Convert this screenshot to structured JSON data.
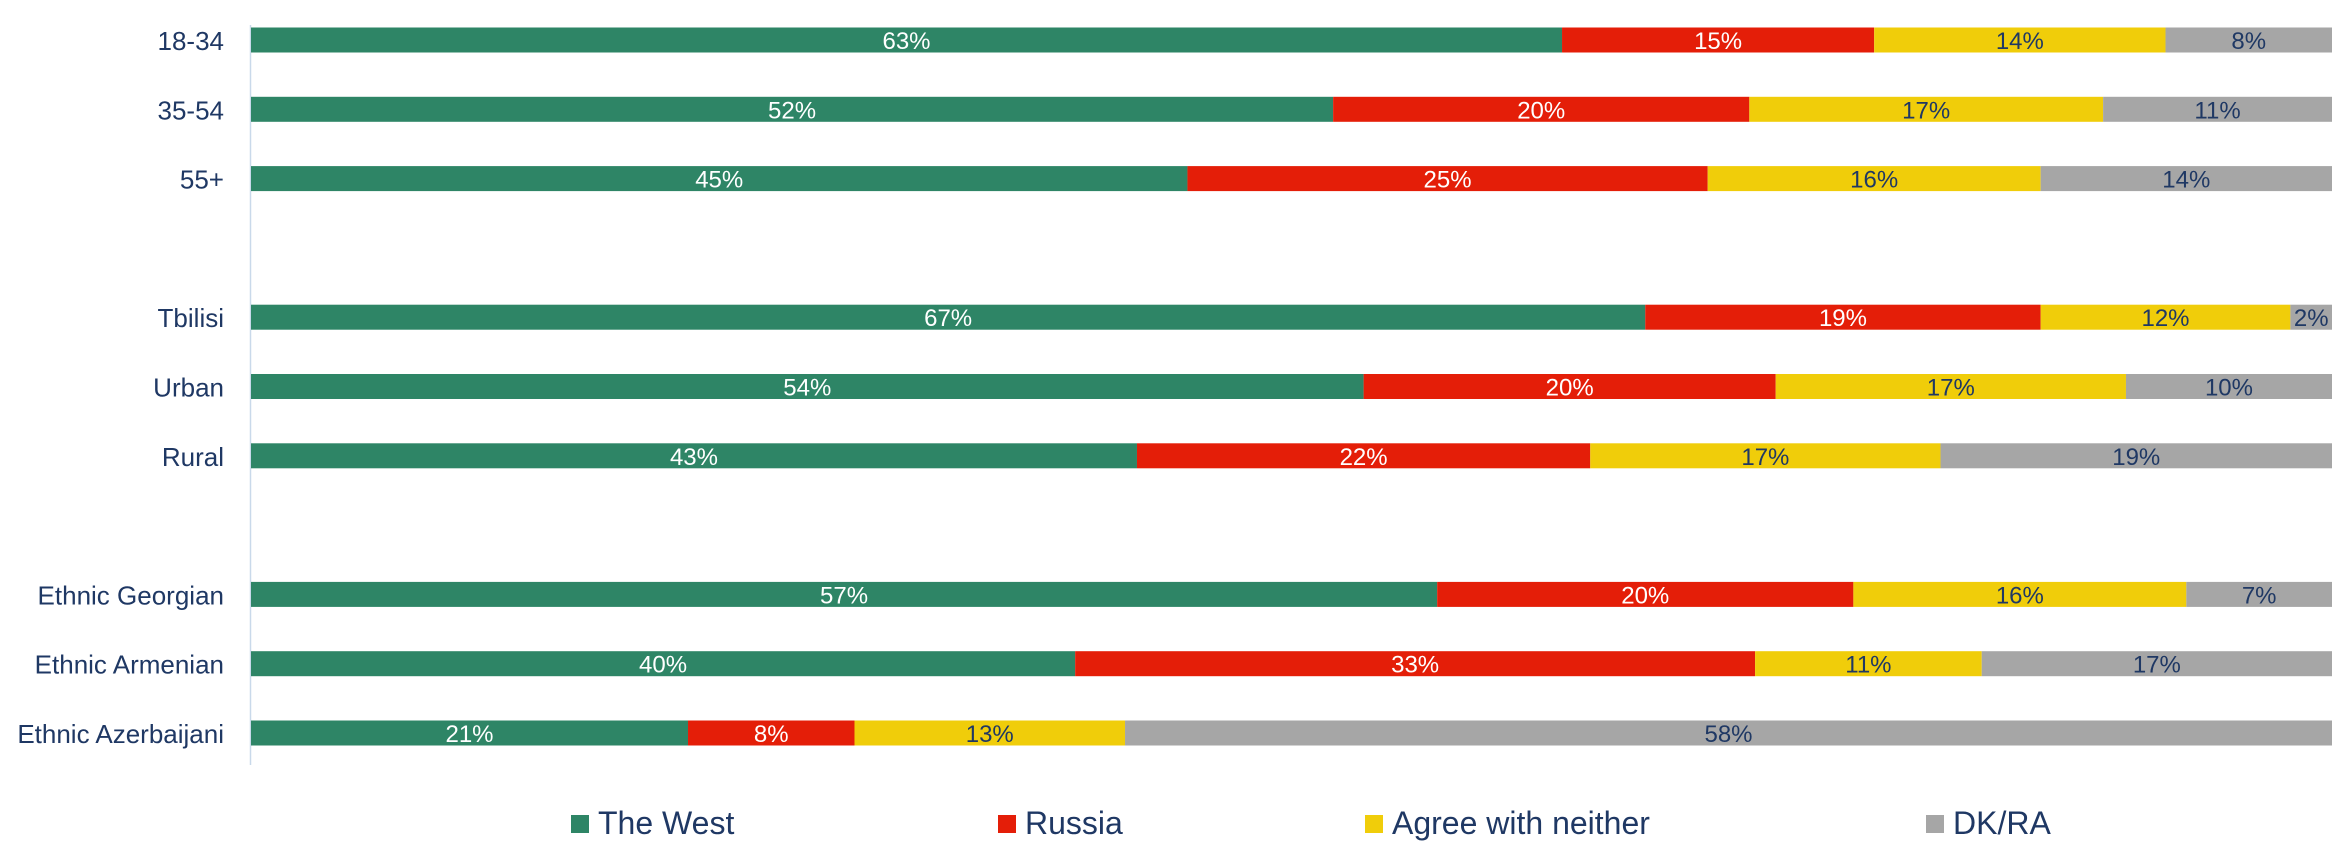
{
  "colors": {
    "the_west": "#2e8566",
    "russia": "#e41e08",
    "neither": "#f0cd0a",
    "dkra": "#a6a6a6",
    "text_dark": "#1f3864",
    "text_light": "#ffffff"
  },
  "legend": {
    "items": [
      "The West",
      "Russia",
      "Agree with neither",
      "DK/RA"
    ]
  },
  "chart_data": {
    "type": "bar",
    "orientation": "horizontal",
    "stacked": true,
    "xlim": [
      0,
      100
    ],
    "value_suffix": "%",
    "grid": false,
    "legend_position": "bottom",
    "categories": [
      "18-34",
      "35-54",
      "55+",
      "",
      "Tbilisi",
      "Urban",
      "Rural",
      "",
      "Ethnic Georgian",
      "Ethnic Armenian",
      "Ethnic Azerbaijani"
    ],
    "series": [
      {
        "name": "The West",
        "values": [
          63,
          52,
          45,
          null,
          67,
          54,
          43,
          null,
          57,
          40,
          21
        ]
      },
      {
        "name": "Russia",
        "values": [
          15,
          20,
          25,
          null,
          19,
          20,
          22,
          null,
          20,
          33,
          8
        ]
      },
      {
        "name": "Agree with neither",
        "values": [
          14,
          17,
          16,
          null,
          12,
          17,
          17,
          null,
          16,
          11,
          13
        ]
      },
      {
        "name": "DK/RA",
        "values": [
          8,
          11,
          14,
          null,
          2,
          10,
          19,
          null,
          7,
          17,
          58
        ]
      }
    ]
  }
}
